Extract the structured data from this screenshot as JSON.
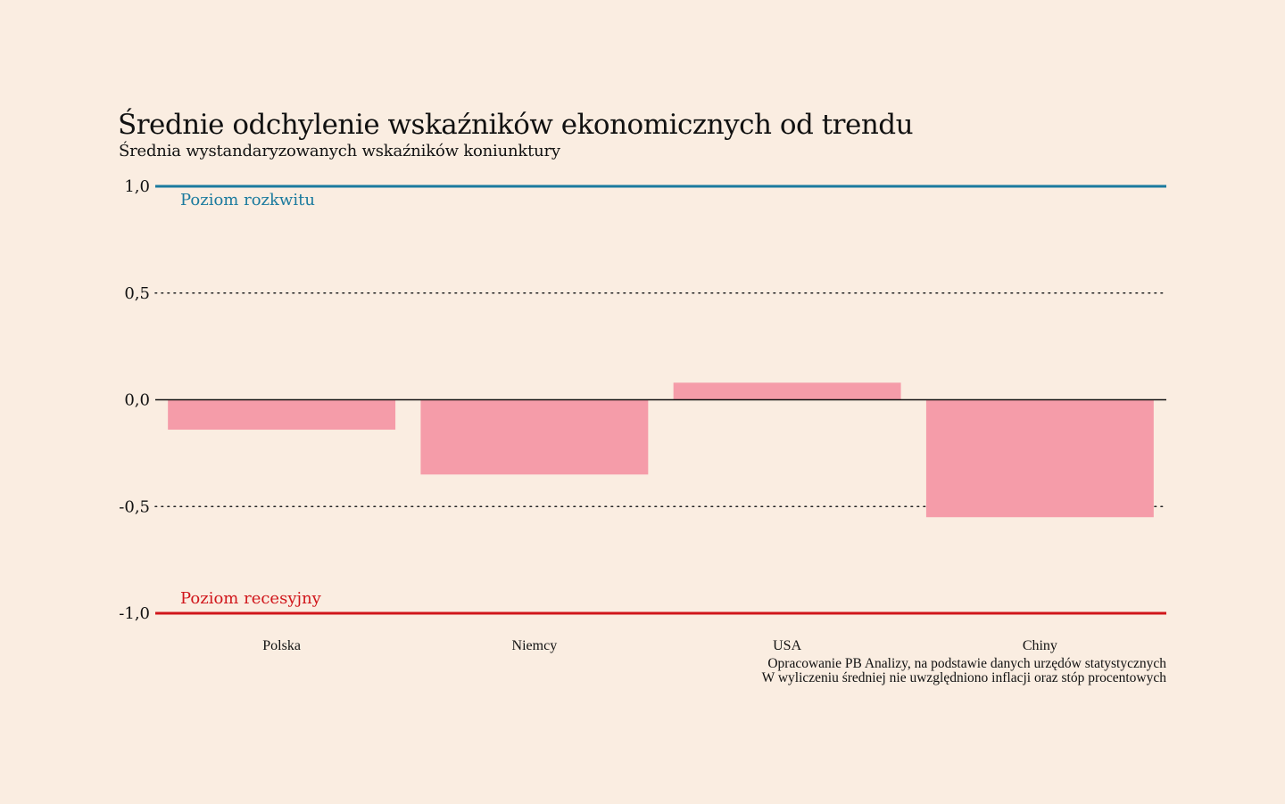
{
  "title": "Średnie odchylenie wskaźników ekonomicznych od trendu",
  "subtitle": "Średnia wystandaryzowanych wskaźników koniunktury",
  "source": {
    "line1": "Opracowanie PB Analizy, na podstawie danych urzędów statystycznych",
    "line2": "W wyliczeniu średniej nie uwzględniono inflacji oraz stóp procentowych"
  },
  "colors": {
    "background": "#faede1",
    "bar": "#f59ca9",
    "boom": "#1a7a9e",
    "recession": "#d0161b",
    "text": "#111111"
  },
  "chart_data": {
    "type": "bar",
    "title": "Średnie odchylenie wskaźników ekonomicznych od trendu",
    "subtitle": "Średnia wystandaryzowanych wskaźników koniunktury",
    "categories": [
      "Polska",
      "Niemcy",
      "USA",
      "Chiny"
    ],
    "values": [
      -0.14,
      -0.35,
      0.08,
      -0.55
    ],
    "ylim": [
      -1.0,
      1.0
    ],
    "yticks": [
      1.0,
      0.5,
      0.0,
      -0.5,
      -1.0
    ],
    "ytick_labels": [
      "1,0",
      "0,5",
      "0,0",
      "-0,5",
      "-1,0"
    ],
    "grid": "dotted at ±0,5",
    "reference_lines": [
      {
        "value": 1.0,
        "label": "Poziom rozkwitu",
        "color": "#1a7a9e"
      },
      {
        "value": -1.0,
        "label": "Poziom recesyjny",
        "color": "#d0161b"
      }
    ],
    "xlabel": "",
    "ylabel": ""
  }
}
